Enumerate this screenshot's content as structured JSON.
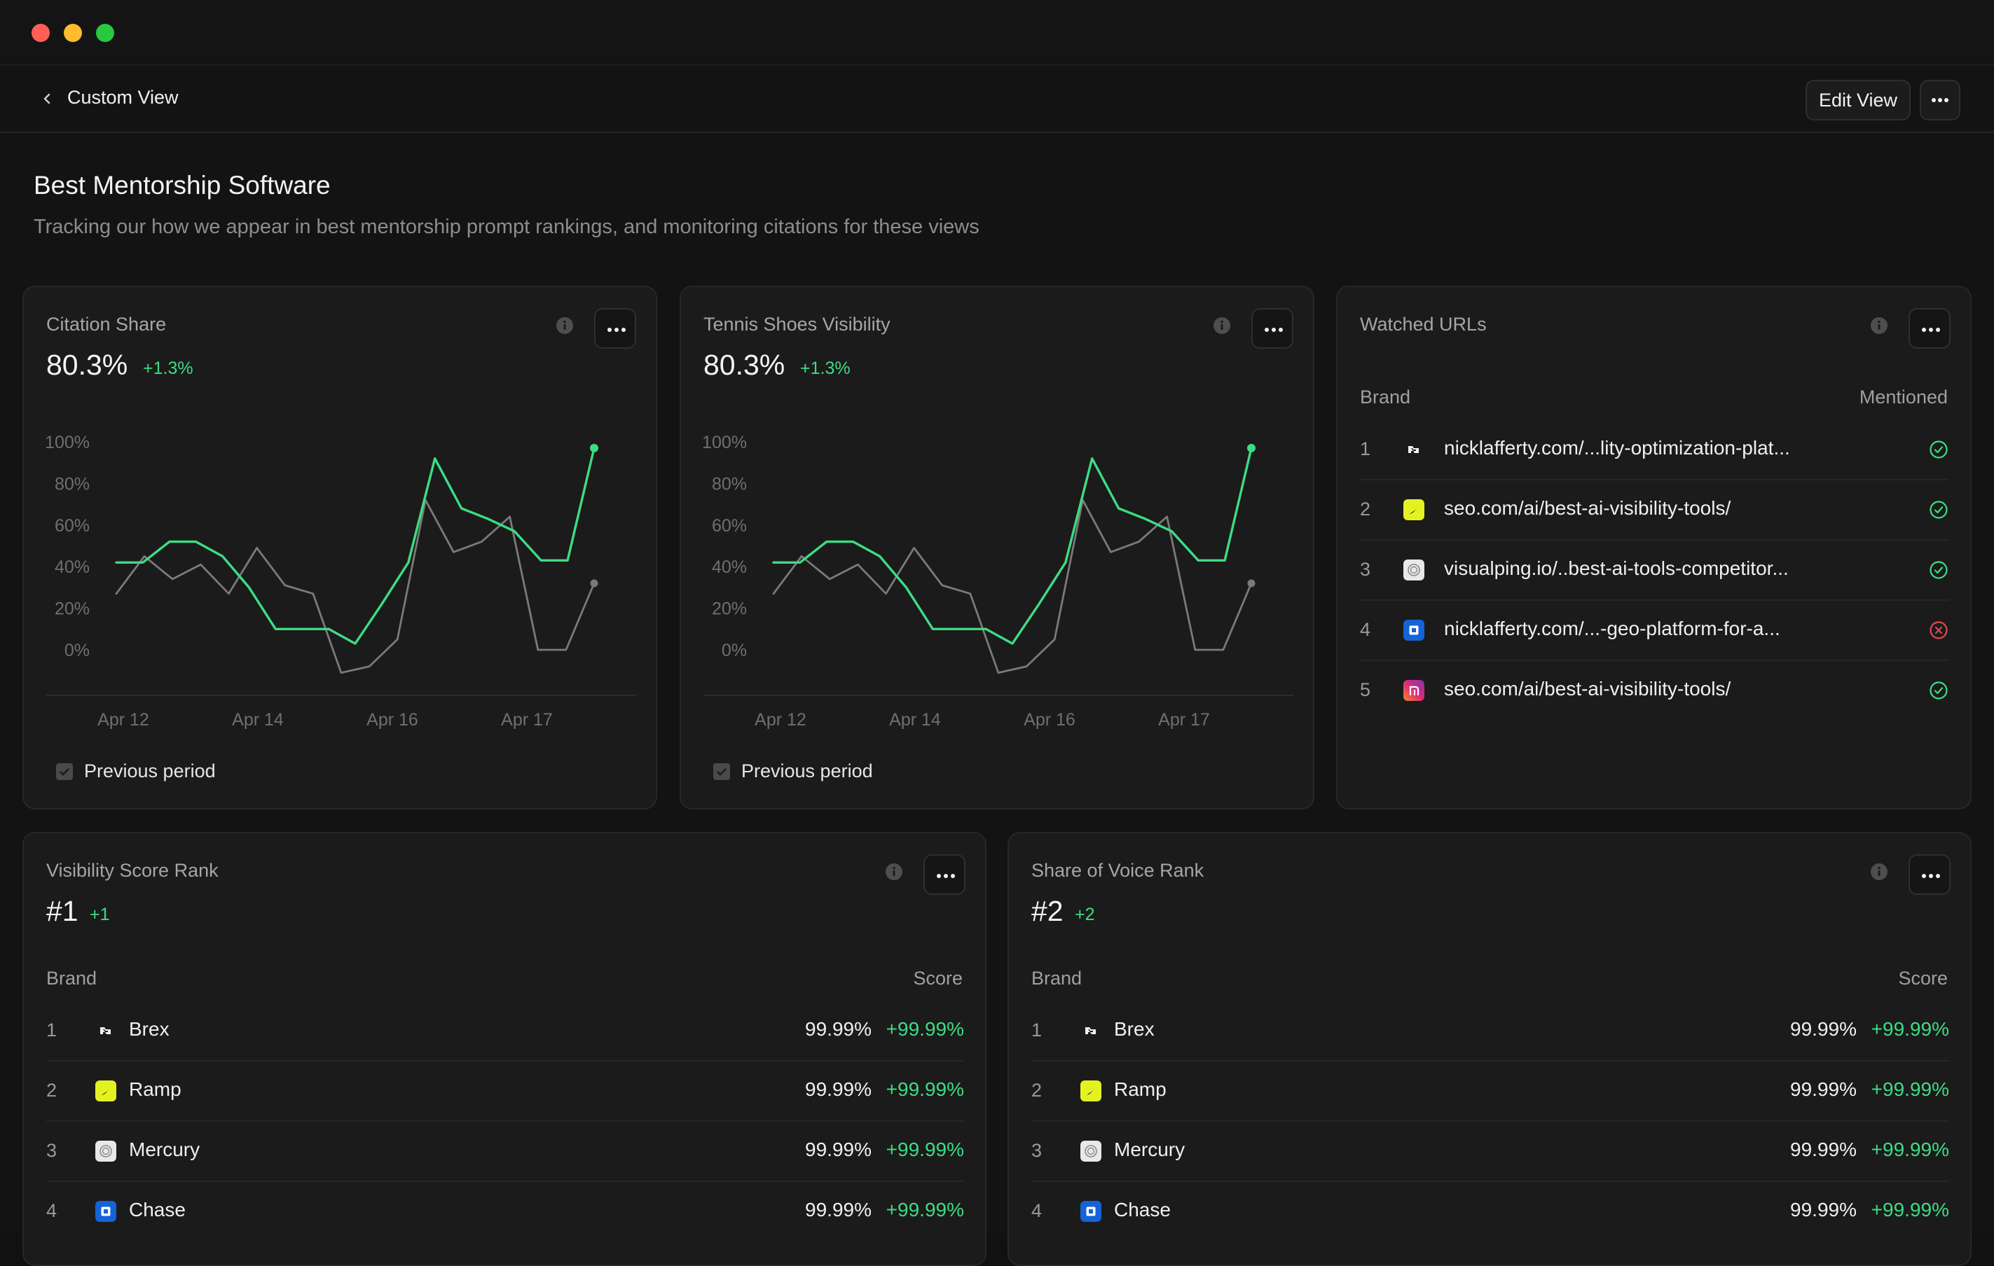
{
  "nav": {
    "breadcrumb": "Custom View",
    "edit_label": "Edit View"
  },
  "page": {
    "title": "Best Mentorship Software",
    "subtitle": "Tracking our how we appear in best mentorship prompt rankings, and monitoring citations for these views"
  },
  "colors": {
    "accent_green": "#3ddc84",
    "previous_gray": "#7a7a7a",
    "error_red": "#e5484d"
  },
  "cards": {
    "citation": {
      "title": "Citation Share",
      "value": "80.3%",
      "delta": "+1.3%",
      "legend": "Previous period"
    },
    "tennis": {
      "title": "Tennis Shoes Visibility",
      "value": "80.3%",
      "delta": "+1.3%",
      "legend": "Previous period"
    },
    "watched": {
      "title": "Watched URLs",
      "col_brand": "Brand",
      "col_mentioned": "Mentioned",
      "rows": [
        {
          "num": "1",
          "url": "nicklafferty.com/...lity-optimization-plat...",
          "logo": "brex-icon",
          "mentioned": true
        },
        {
          "num": "2",
          "url": "seo.com/ai/best-ai-visibility-tools/",
          "logo": "ramp-icon",
          "mentioned": true
        },
        {
          "num": "3",
          "url": "visualping.io/..best-ai-tools-competitor...",
          "logo": "mercury-icon",
          "mentioned": true
        },
        {
          "num": "4",
          "url": "nicklafferty.com/...-geo-platform-for-a...",
          "logo": "chase-icon",
          "mentioned": false
        },
        {
          "num": "5",
          "url": "seo.com/ai/best-ai-visibility-tools/",
          "logo": "instagram-icon",
          "mentioned": true
        }
      ]
    },
    "visibility_rank": {
      "title": "Visibility Score Rank",
      "value": "#1",
      "delta": "+1",
      "col_brand": "Brand",
      "col_score": "Score",
      "rows": [
        {
          "num": "1",
          "brand": "Brex",
          "score": "99.99%",
          "delta": "+99.99%"
        },
        {
          "num": "2",
          "brand": "Ramp",
          "score": "99.99%",
          "delta": "+99.99%"
        },
        {
          "num": "3",
          "brand": "Mercury",
          "score": "99.99%",
          "delta": "+99.99%"
        },
        {
          "num": "4",
          "brand": "Chase",
          "score": "99.99%",
          "delta": "+99.99%"
        }
      ]
    },
    "voice_rank": {
      "title": "Share of Voice Rank",
      "value": "#2",
      "delta": "+2",
      "col_brand": "Brand",
      "col_score": "Score",
      "rows": [
        {
          "num": "1",
          "brand": "Brex",
          "score": "99.99%",
          "delta": "+99.99%"
        },
        {
          "num": "2",
          "brand": "Ramp",
          "score": "99.99%",
          "delta": "+99.99%"
        },
        {
          "num": "3",
          "brand": "Mercury",
          "score": "99.99%",
          "delta": "+99.99%"
        },
        {
          "num": "4",
          "brand": "Chase",
          "score": "99.99%",
          "delta": "+99.99%"
        }
      ]
    }
  },
  "chart_data": [
    {
      "type": "line",
      "title": "Citation Share",
      "y_ticks": [
        "100%",
        "80%",
        "60%",
        "40%",
        "20%",
        "0%"
      ],
      "x_ticks": [
        "Apr 12",
        "Apr 14",
        "Apr 16",
        "Apr 17"
      ],
      "ylim": [
        0,
        100
      ],
      "series": [
        {
          "name": "Citation Share",
          "color": "#3ddc84",
          "values": [
            42,
            42,
            52,
            52,
            45,
            30,
            10,
            10,
            10,
            3,
            22,
            42,
            92,
            68,
            63,
            57,
            43,
            43,
            97
          ]
        },
        {
          "name": "Previous period",
          "color": "#7a7a7a",
          "values": [
            27,
            45,
            34,
            41,
            27,
            49,
            31,
            27,
            -11,
            -8,
            5,
            72,
            47,
            52,
            64,
            0,
            0,
            32
          ]
        }
      ]
    },
    {
      "type": "line",
      "title": "Tennis Shoes Visibility",
      "y_ticks": [
        "100%",
        "80%",
        "60%",
        "40%",
        "20%",
        "0%"
      ],
      "x_ticks": [
        "Apr 12",
        "Apr 14",
        "Apr 16",
        "Apr 17"
      ],
      "ylim": [
        0,
        100
      ],
      "series": [
        {
          "name": "Tennis Shoes Visibility",
          "color": "#3ddc84",
          "values": [
            42,
            42,
            52,
            52,
            45,
            30,
            10,
            10,
            10,
            3,
            22,
            42,
            92,
            68,
            63,
            57,
            43,
            43,
            97
          ]
        },
        {
          "name": "Previous period",
          "color": "#7a7a7a",
          "values": [
            27,
            45,
            34,
            41,
            27,
            49,
            31,
            27,
            -11,
            -8,
            5,
            72,
            47,
            52,
            64,
            0,
            0,
            32
          ]
        }
      ]
    }
  ]
}
